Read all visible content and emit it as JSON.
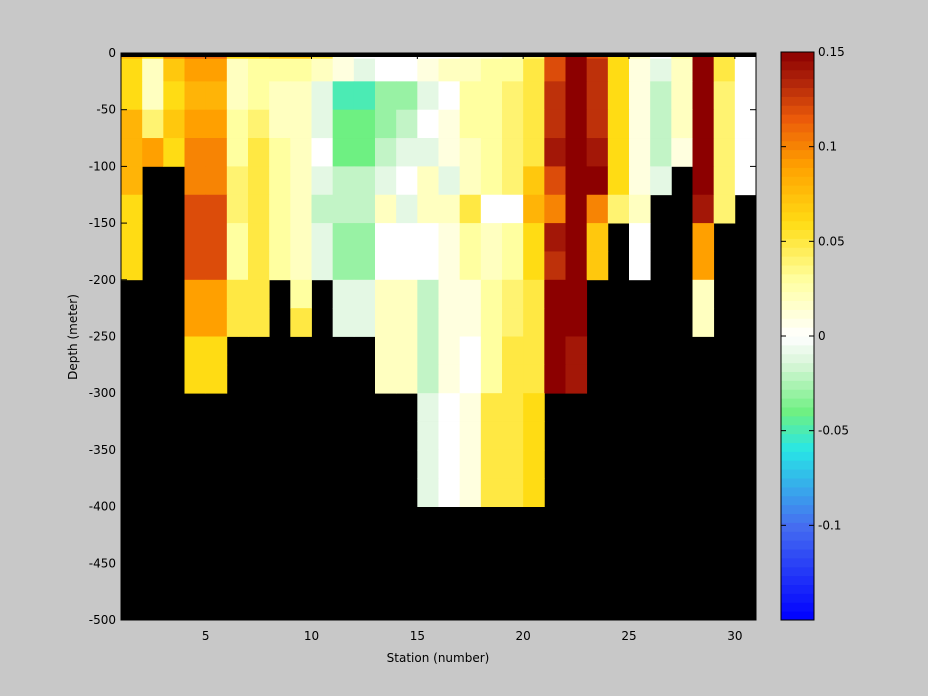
{
  "chart_data": {
    "type": "heatmap",
    "title": "",
    "xlabel": "Station (number)",
    "ylabel": "Depth (meter)",
    "xlim": [
      1,
      31
    ],
    "ylim": [
      -500,
      0
    ],
    "xticks": [
      "5",
      "10",
      "15",
      "20",
      "25",
      "30"
    ],
    "yticks": [
      "0",
      "-50",
      "-100",
      "-150",
      "-200",
      "-250",
      "-300",
      "-350",
      "-400",
      "-450",
      "-500"
    ],
    "colorbar": {
      "range": [
        -0.15,
        0.15
      ],
      "ticks": [
        "0.15",
        "0.1",
        "0.05",
        "0",
        "-0.05",
        "-0.1"
      ],
      "colormap": "jet-white-centered"
    },
    "masked_color": "#000000",
    "stations": [
      1,
      2,
      3,
      4,
      5,
      6,
      7,
      8,
      9,
      10,
      11,
      12,
      13,
      14,
      15,
      16,
      17,
      18,
      19,
      20,
      21,
      22,
      23,
      24,
      25,
      26,
      27,
      28,
      29,
      30
    ],
    "depth_bins": [
      [
        -5,
        0
      ],
      [
        -25,
        -5
      ],
      [
        -50,
        -25
      ],
      [
        -75,
        -50
      ],
      [
        -100,
        -75
      ],
      [
        -125,
        -100
      ],
      [
        -150,
        -125
      ],
      [
        -175,
        -150
      ],
      [
        -200,
        -175
      ],
      [
        -225,
        -200
      ],
      [
        -250,
        -225
      ],
      [
        -275,
        -250
      ],
      [
        -300,
        -275
      ],
      [
        -325,
        -300
      ],
      [
        -350,
        -325
      ],
      [
        -375,
        -350
      ],
      [
        -400,
        -375
      ]
    ],
    "values": [
      [
        0.08,
        0.06,
        0.1,
        0.11,
        0.11,
        0.06,
        0.06,
        0.07,
        0.07,
        0.05,
        0.01,
        0.0,
        0.0,
        0.0,
        0.0,
        0.0,
        0.01,
        0.01,
        0.02,
        0.04,
        0.12,
        0.15,
        0.12,
        0.06,
        0.02,
        0.0,
        0.03,
        0.15,
        0.05,
        0.0
      ],
      [
        0.06,
        0.02,
        0.07,
        0.09,
        0.09,
        0.02,
        0.03,
        0.03,
        0.03,
        0.02,
        0.01,
        -0.01,
        0.0,
        0.0,
        0.01,
        0.02,
        0.02,
        0.03,
        0.03,
        0.05,
        0.12,
        0.15,
        0.13,
        0.06,
        0.01,
        -0.01,
        0.02,
        0.15,
        0.05,
        0.0
      ],
      [
        0.06,
        0.02,
        0.06,
        0.08,
        0.08,
        0.02,
        0.03,
        0.02,
        0.02,
        -0.01,
        -0.05,
        -0.05,
        -0.03,
        -0.03,
        -0.01,
        0.0,
        0.03,
        0.03,
        0.04,
        0.05,
        0.13,
        0.15,
        0.13,
        0.06,
        0.01,
        -0.02,
        0.02,
        0.15,
        0.04,
        0.0
      ],
      [
        0.08,
        0.04,
        0.07,
        0.09,
        0.09,
        0.03,
        0.04,
        0.02,
        0.02,
        -0.01,
        -0.04,
        -0.04,
        -0.03,
        -0.02,
        0.0,
        0.01,
        0.03,
        0.03,
        0.04,
        0.05,
        0.13,
        0.15,
        0.13,
        0.06,
        0.01,
        -0.02,
        0.02,
        0.15,
        0.04,
        0.0
      ],
      [
        0.08,
        0.09,
        0.06,
        0.1,
        0.1,
        0.03,
        0.05,
        0.03,
        0.02,
        0.0,
        -0.04,
        -0.04,
        -0.02,
        -0.01,
        -0.01,
        0.01,
        0.02,
        0.03,
        0.04,
        0.05,
        0.14,
        0.15,
        0.14,
        0.06,
        0.01,
        -0.02,
        0.01,
        0.15,
        0.04,
        0.0
      ],
      [
        0.08,
        null,
        null,
        0.1,
        0.1,
        0.04,
        0.05,
        0.03,
        0.02,
        -0.01,
        -0.02,
        -0.02,
        -0.01,
        0.0,
        0.02,
        -0.01,
        0.02,
        0.03,
        0.04,
        0.07,
        0.12,
        0.15,
        0.15,
        0.06,
        0.01,
        -0.01,
        null,
        0.15,
        0.04,
        0.0
      ],
      [
        0.06,
        null,
        null,
        0.12,
        0.12,
        0.04,
        0.05,
        0.03,
        0.02,
        -0.02,
        -0.02,
        -0.02,
        0.02,
        -0.01,
        0.02,
        0.02,
        0.05,
        0.0,
        0.0,
        0.08,
        0.1,
        0.15,
        0.1,
        0.04,
        0.02,
        null,
        null,
        0.14,
        0.04,
        null
      ],
      [
        0.06,
        null,
        null,
        0.12,
        0.12,
        0.03,
        0.05,
        0.03,
        0.02,
        -0.01,
        -0.03,
        -0.03,
        0.0,
        0.0,
        0.0,
        0.01,
        0.03,
        0.02,
        0.03,
        0.06,
        0.14,
        0.15,
        0.07,
        null,
        0.0,
        null,
        null,
        0.09,
        null,
        null
      ],
      [
        0.06,
        null,
        null,
        0.12,
        0.12,
        0.03,
        0.05,
        0.03,
        0.02,
        -0.01,
        -0.03,
        -0.03,
        0.0,
        0.0,
        0.0,
        0.01,
        0.03,
        0.02,
        0.03,
        0.06,
        0.13,
        0.15,
        0.07,
        null,
        0.0,
        null,
        null,
        0.09,
        null,
        null
      ],
      [
        null,
        null,
        null,
        0.09,
        0.09,
        0.05,
        0.05,
        null,
        0.03,
        null,
        -0.01,
        -0.01,
        0.02,
        0.02,
        -0.02,
        0.01,
        0.01,
        0.03,
        0.04,
        0.05,
        0.15,
        0.15,
        null,
        null,
        null,
        null,
        null,
        0.02,
        null,
        null
      ],
      [
        null,
        null,
        null,
        0.09,
        0.09,
        0.05,
        0.05,
        null,
        0.05,
        null,
        -0.01,
        -0.01,
        0.02,
        0.02,
        -0.02,
        0.01,
        0.01,
        0.03,
        0.04,
        0.05,
        0.15,
        0.15,
        null,
        null,
        null,
        null,
        null,
        0.02,
        null,
        null
      ],
      [
        null,
        null,
        null,
        0.06,
        0.06,
        null,
        null,
        null,
        null,
        null,
        null,
        null,
        0.02,
        0.02,
        -0.02,
        0.01,
        0.0,
        0.03,
        0.05,
        0.05,
        0.15,
        0.14,
        null,
        null,
        null,
        null,
        null,
        null,
        null,
        null
      ],
      [
        null,
        null,
        null,
        0.06,
        0.06,
        null,
        null,
        null,
        null,
        null,
        null,
        null,
        0.02,
        0.02,
        -0.02,
        0.01,
        0.0,
        0.03,
        0.05,
        0.05,
        0.15,
        0.14,
        null,
        null,
        null,
        null,
        null,
        null,
        null,
        null
      ],
      [
        null,
        null,
        null,
        null,
        null,
        null,
        null,
        null,
        null,
        null,
        null,
        null,
        null,
        null,
        -0.01,
        0.0,
        0.01,
        0.05,
        0.05,
        0.06,
        null,
        null,
        null,
        null,
        null,
        null,
        null,
        null,
        null,
        null
      ],
      [
        null,
        null,
        null,
        null,
        null,
        null,
        null,
        null,
        null,
        null,
        null,
        null,
        null,
        null,
        -0.01,
        0.0,
        0.01,
        0.05,
        0.05,
        0.06,
        null,
        null,
        null,
        null,
        null,
        null,
        null,
        null,
        null,
        null
      ],
      [
        null,
        null,
        null,
        null,
        null,
        null,
        null,
        null,
        null,
        null,
        null,
        null,
        null,
        null,
        -0.01,
        0.0,
        0.01,
        0.05,
        0.05,
        0.06,
        null,
        null,
        null,
        null,
        null,
        null,
        null,
        null,
        null,
        null
      ],
      [
        null,
        null,
        null,
        null,
        null,
        null,
        null,
        null,
        null,
        null,
        null,
        null,
        null,
        null,
        -0.01,
        0.0,
        0.01,
        0.05,
        0.05,
        0.06,
        null,
        null,
        null,
        null,
        null,
        null,
        null,
        null,
        null,
        null
      ]
    ]
  }
}
